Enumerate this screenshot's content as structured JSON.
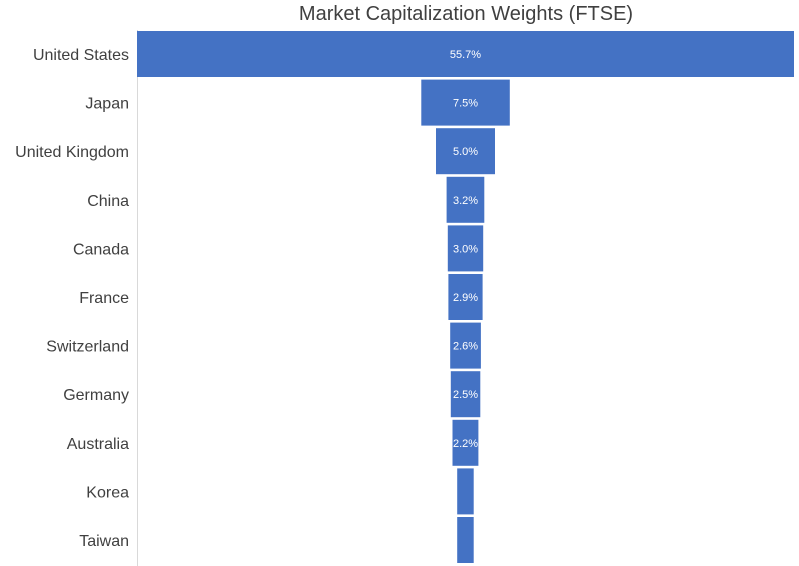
{
  "chart_data": {
    "type": "bar",
    "subtype": "funnel",
    "title": "Market Capitalization Weights (FTSE)",
    "categories": [
      "United States",
      "Japan",
      "United Kingdom",
      "China",
      "Canada",
      "France",
      "Switzerland",
      "Germany",
      "Australia",
      "Korea",
      "Taiwan"
    ],
    "values": [
      55.7,
      7.5,
      5.0,
      3.2,
      3.0,
      2.9,
      2.6,
      2.5,
      2.2,
      1.4,
      1.4
    ],
    "data_labels": [
      "55.7%",
      "7.5%",
      "5.0%",
      "3.2%",
      "3.0%",
      "2.9%",
      "2.6%",
      "2.5%",
      "2.2%",
      "",
      ""
    ],
    "unit": "%",
    "bar_color": "#4472C4",
    "label_color": "#FFFFFF",
    "text_color": "#404040",
    "axis_color": "#D9D9D9",
    "grid": false,
    "legend": "none"
  }
}
